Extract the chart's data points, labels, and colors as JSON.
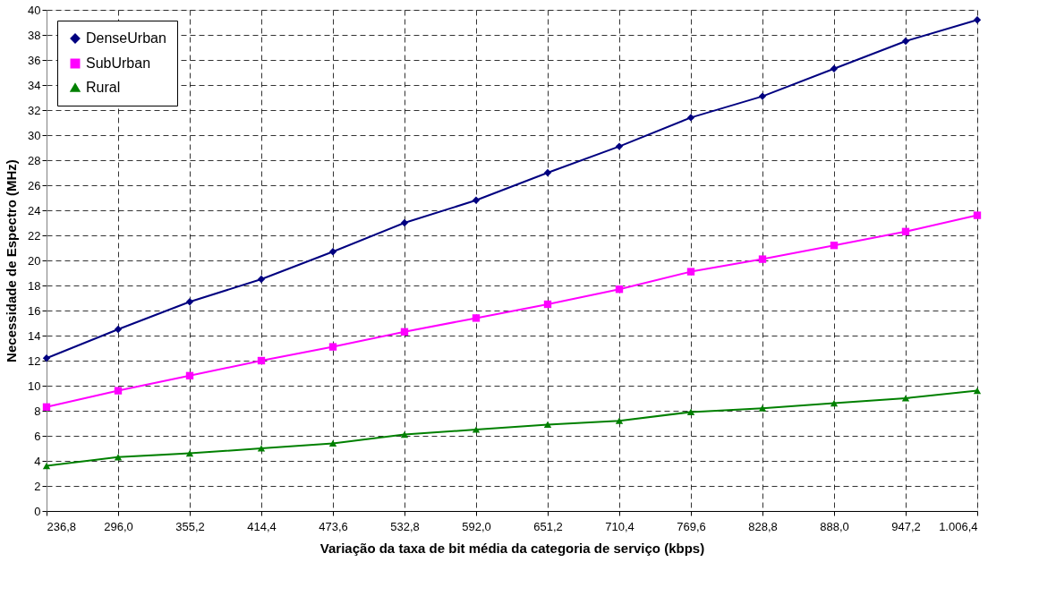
{
  "chart_data": {
    "type": "line",
    "xlabel": "Variação da taxa de bit média da categoria de serviço (kbps)",
    "ylabel": "Necessidade de Espectro (MHz)",
    "categories": [
      "236,8",
      "296,0",
      "355,2",
      "414,4",
      "473,6",
      "532,8",
      "592,0",
      "651,2",
      "710,4",
      "769,6",
      "828,8",
      "888,0",
      "947,2",
      "1.006,4"
    ],
    "series": [
      {
        "name": "DenseUrban",
        "color": "#000080",
        "marker": "diamond",
        "values": [
          12.2,
          14.5,
          16.7,
          18.5,
          20.7,
          23.0,
          24.8,
          27.0,
          29.1,
          31.4,
          33.1,
          35.3,
          37.5,
          39.2
        ]
      },
      {
        "name": "SubUrban",
        "color": "#ff00ff",
        "marker": "square",
        "values": [
          8.3,
          9.6,
          10.8,
          12.0,
          13.1,
          14.3,
          15.4,
          16.5,
          17.7,
          19.1,
          20.1,
          21.2,
          22.3,
          23.6
        ]
      },
      {
        "name": "Rural",
        "color": "#008000",
        "marker": "triangle",
        "values": [
          3.6,
          4.3,
          4.6,
          5.0,
          5.4,
          6.1,
          6.5,
          6.9,
          7.2,
          7.9,
          8.2,
          8.6,
          9.0,
          9.6
        ]
      }
    ],
    "ylim": [
      0,
      40
    ],
    "yticks": [
      0,
      2,
      4,
      6,
      8,
      10,
      12,
      14,
      16,
      18,
      20,
      22,
      24,
      26,
      28,
      30,
      32,
      34,
      36,
      38,
      40
    ],
    "grid": true,
    "legend": "top left",
    "line_style": "solid"
  }
}
